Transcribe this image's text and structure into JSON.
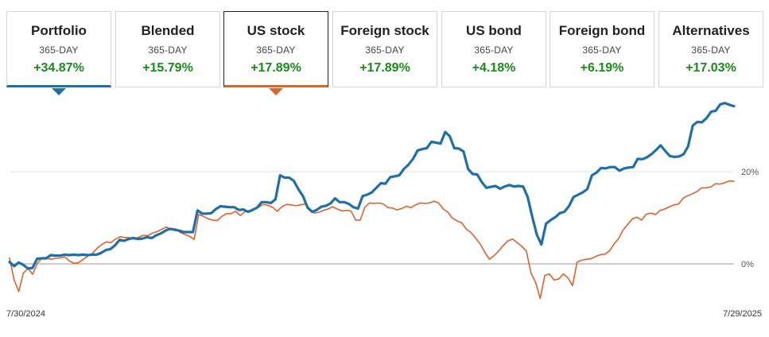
{
  "tabs": [
    {
      "name": "Portfolio",
      "period": "365-DAY",
      "value": "+34.87%"
    },
    {
      "name": "Blended",
      "period": "365-DAY",
      "value": "+15.79%"
    },
    {
      "name": "US stock",
      "period": "365-DAY",
      "value": "+17.89%"
    },
    {
      "name": "Foreign stock",
      "period": "365-DAY",
      "value": "+17.89%"
    },
    {
      "name": "US bond",
      "period": "365-DAY",
      "value": "+4.18%"
    },
    {
      "name": "Foreign bond",
      "period": "365-DAY",
      "value": "+6.19%"
    },
    {
      "name": "Alternatives",
      "period": "365-DAY",
      "value": "+17.03%"
    }
  ],
  "selected": {
    "primary": "Portfolio",
    "comparison": "US stock"
  },
  "colors": {
    "portfolio": "#1f6fa8",
    "comparison": "#e0622b",
    "gain": "#1a8a1a"
  },
  "chart_data": {
    "type": "line",
    "x_labels": [
      "7/30/2024",
      "7/29/2025"
    ],
    "y_ticks": [
      "20%",
      "0%"
    ],
    "ylim": [
      -8,
      36
    ],
    "grid": true,
    "series": [
      {
        "name": "Portfolio",
        "values": [
          0.4,
          -0.5,
          0.3,
          -0.2,
          -1.0,
          -0.9,
          1.1,
          1.2,
          1.2,
          1.9,
          1.8,
          1.8,
          2.0,
          1.9,
          2.0,
          1.9,
          2.0,
          1.9,
          2.0,
          2.0,
          2.4,
          3.0,
          3.2,
          4.0,
          5.2,
          5.0,
          5.4,
          5.6,
          5.4,
          5.5,
          5.8,
          5.6,
          6.2,
          6.6,
          7.2,
          7.6,
          7.4,
          7.2,
          6.9,
          6.9,
          6.9,
          11.6,
          10.9,
          10.9,
          11.0,
          11.9,
          12.5,
          12.4,
          12.3,
          12.3,
          11.7,
          11.8,
          11.3,
          11.7,
          12.2,
          13.4,
          13.4,
          13.2,
          14.0,
          19.2,
          18.7,
          18.7,
          18.0,
          16.2,
          14.7,
          12.2,
          11.3,
          11.7,
          12.4,
          12.6,
          13.1,
          14.2,
          13.4,
          13.4,
          13.0,
          12.3,
          12.0,
          14.7,
          15.0,
          15.5,
          16.5,
          17.5,
          17.4,
          18.8,
          19.0,
          19.2,
          20.6,
          21.5,
          22.8,
          24.6,
          24.9,
          25.1,
          26.5,
          26.3,
          26.1,
          28.6,
          27.7,
          25.1,
          25.0,
          24.4,
          20.6,
          19.5,
          19.4,
          17.7,
          16.5,
          16.7,
          16.9,
          16.3,
          16.8,
          17.1,
          16.8,
          16.9,
          16.8,
          14.5,
          10.2,
          6.3,
          4.2,
          8.7,
          9.5,
          10.1,
          11.0,
          11.3,
          12.5,
          14.5,
          15.0,
          15.5,
          16.2,
          19.2,
          19.8,
          20.8,
          20.7,
          21.0,
          21.0,
          20.2,
          20.7,
          20.9,
          21.0,
          22.8,
          22.7,
          23.1,
          23.8,
          24.7,
          25.7,
          24.5,
          23.4,
          23.2,
          23.3,
          23.8,
          25.5,
          30.0,
          30.8,
          30.7,
          31.6,
          33.0,
          33.2,
          34.6,
          34.9,
          34.5,
          34.2
        ]
      },
      {
        "name": "US stock",
        "values": [
          1.3,
          -3.5,
          -6.0,
          -2.0,
          -1.0,
          -2.3,
          0.1,
          1.2,
          1.2,
          1.0,
          1.2,
          1.3,
          1.5,
          0.6,
          0.1,
          0.3,
          1.0,
          1.7,
          2.3,
          3.4,
          4.2,
          4.8,
          4.6,
          5.4,
          5.9,
          5.7,
          5.7,
          5.4,
          5.8,
          6.2,
          6.1,
          6.7,
          7.0,
          7.5,
          8.0,
          7.4,
          7.6,
          6.8,
          6.4,
          6.0,
          5.3,
          10.7,
          10.3,
          9.8,
          9.5,
          9.4,
          10.3,
          10.9,
          10.9,
          11.4,
          10.5,
          11.3,
          11.5,
          12.0,
          12.3,
          12.9,
          12.7,
          12.3,
          11.4,
          12.4,
          12.9,
          12.8,
          12.6,
          12.8,
          13.0,
          12.0,
          11.0,
          11.2,
          11.6,
          11.9,
          12.4,
          11.9,
          11.5,
          11.6,
          11.5,
          9.5,
          9.5,
          12.3,
          13.2,
          13.1,
          13.2,
          13.0,
          12.2,
          12.1,
          11.7,
          12.0,
          12.5,
          12.2,
          12.8,
          13.2,
          13.1,
          13.2,
          13.6,
          13.2,
          11.9,
          11.2,
          9.9,
          9.3,
          8.9,
          7.5,
          6.8,
          5.6,
          4.3,
          2.5,
          1.0,
          1.8,
          2.8,
          4.0,
          5.0,
          5.4,
          4.6,
          3.8,
          2.8,
          -2.0,
          -4.0,
          -7.5,
          -2.5,
          -2.2,
          -3.5,
          -3.3,
          -2.2,
          -3.0,
          -4.7,
          0.4,
          0.8,
          1.0,
          1.1,
          1.6,
          2.0,
          2.1,
          2.8,
          4.3,
          5.5,
          7.4,
          8.6,
          9.8,
          10.1,
          9.5,
          10.8,
          11.0,
          10.7,
          11.6,
          11.9,
          12.4,
          12.8,
          13.0,
          14.3,
          14.8,
          15.2,
          15.7,
          16.5,
          16.5,
          16.7,
          17.4,
          17.3,
          17.6,
          18.0,
          17.9
        ]
      }
    ]
  }
}
